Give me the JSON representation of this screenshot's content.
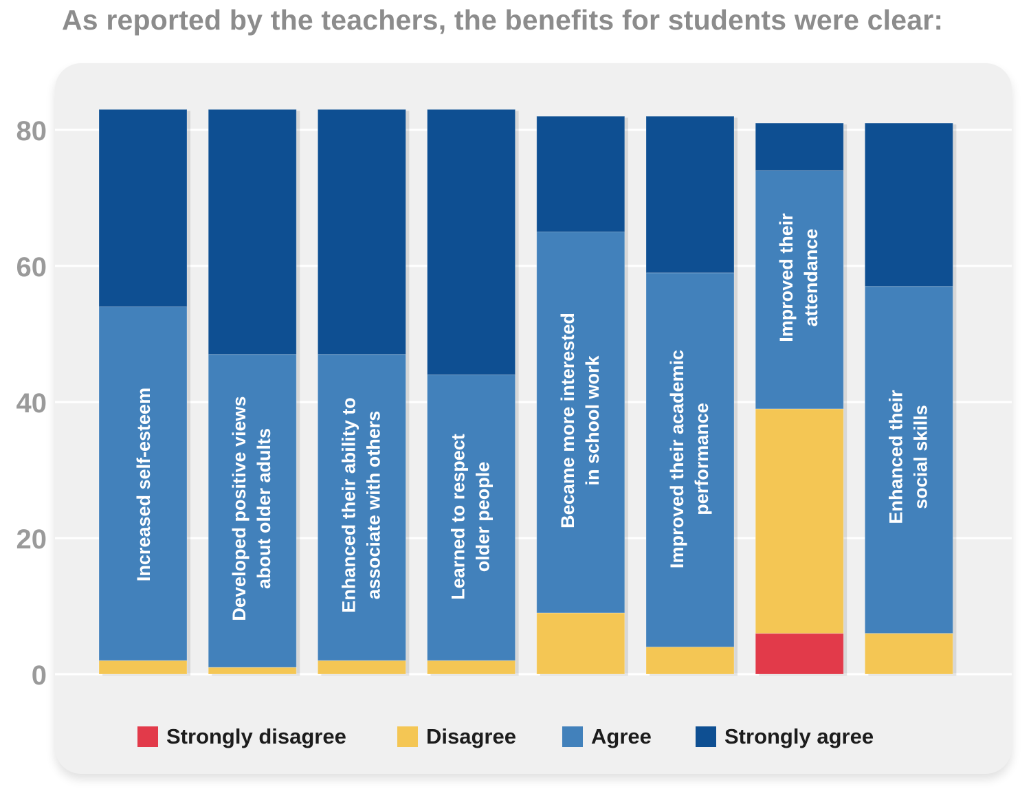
{
  "title": "As reported by the teachers, the benefits for students were clear:",
  "chart_data": {
    "type": "bar",
    "stacked": true,
    "title": "As reported by the teachers, the benefits for students were clear:",
    "xlabel": "",
    "ylabel": "",
    "ylim": [
      -10,
      90
    ],
    "yticks": [
      0,
      20,
      40,
      60,
      80
    ],
    "grid": true,
    "legend_position": "bottom",
    "categories": [
      "Increased self-esteem",
      "Developed positive views about older adults",
      "Enhanced their ability to associate with others",
      "Learned to respect older people",
      "Became more interested in school work",
      "Improved their academic performance",
      "Improved their attendance",
      "Enhanced their social skills"
    ],
    "bar_label_lines": [
      [
        "Increased self-esteem"
      ],
      [
        "Developed positive views",
        "about older adults"
      ],
      [
        "Enhanced their ability to",
        "associate with others"
      ],
      [
        "Learned to respect",
        "older people"
      ],
      [
        "Became more interested",
        "in school work"
      ],
      [
        "Improved their academic",
        "performance"
      ],
      [
        "Improved their",
        "attendance"
      ],
      [
        "Enhanced their",
        "social skills"
      ]
    ],
    "series": [
      {
        "name": "Strongly disagree",
        "color": "#e23a4a",
        "values": [
          0,
          0,
          0,
          0,
          0,
          0,
          6,
          0
        ]
      },
      {
        "name": "Disagree",
        "color": "#f4c654",
        "values": [
          2,
          1,
          2,
          2,
          9,
          4,
          33,
          6
        ]
      },
      {
        "name": "Agree",
        "color": "#4281bb",
        "values": [
          52,
          46,
          45,
          42,
          56,
          55,
          35,
          51
        ]
      },
      {
        "name": "Strongly agree",
        "color": "#0e4f92",
        "values": [
          29,
          36,
          36,
          39,
          17,
          23,
          7,
          24
        ]
      }
    ]
  },
  "legend": {
    "items": [
      {
        "label": "Strongly disagree",
        "color": "#e23a4a"
      },
      {
        "label": "Disagree",
        "color": "#f4c654"
      },
      {
        "label": "Agree",
        "color": "#4281bb"
      },
      {
        "label": "Strongly agree",
        "color": "#0e4f92"
      }
    ]
  }
}
